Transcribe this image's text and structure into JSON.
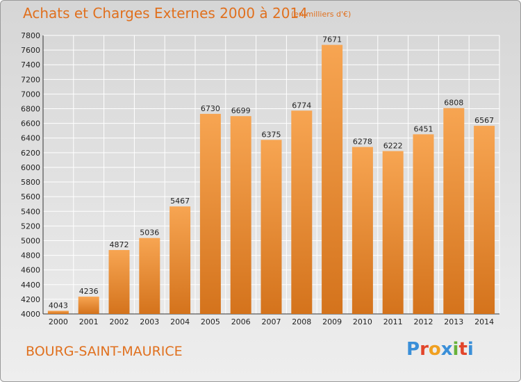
{
  "header": {
    "title": "Achats et Charges Externes 2000 à 2014",
    "subtitle": "(en milliers d'€)"
  },
  "footer": {
    "place": "BOURG-SAINT-MAURICE",
    "logo_text": "Proxiti"
  },
  "colors": {
    "bar_top": "#f7a552",
    "bar_bottom": "#d4731c",
    "title": "#e0701e"
  },
  "chart_data": {
    "type": "bar",
    "title": "Achats et Charges Externes 2000 à 2014",
    "subtitle": "(en milliers d'€)",
    "categories": [
      "2000",
      "2001",
      "2002",
      "2003",
      "2004",
      "2005",
      "2006",
      "2007",
      "2008",
      "2009",
      "2010",
      "2011",
      "2012",
      "2013",
      "2014"
    ],
    "values": [
      4043,
      4236,
      4872,
      5036,
      5467,
      6730,
      6699,
      6375,
      6774,
      7671,
      6278,
      6222,
      6451,
      6808,
      6567
    ],
    "ylim": [
      4000,
      7800
    ],
    "yticks": [
      4000,
      4200,
      4400,
      4600,
      4800,
      5000,
      5200,
      5400,
      5600,
      5800,
      6000,
      6200,
      6400,
      6600,
      6800,
      7000,
      7200,
      7400,
      7600,
      7800
    ],
    "grid": true,
    "xlabel": "",
    "ylabel": ""
  }
}
